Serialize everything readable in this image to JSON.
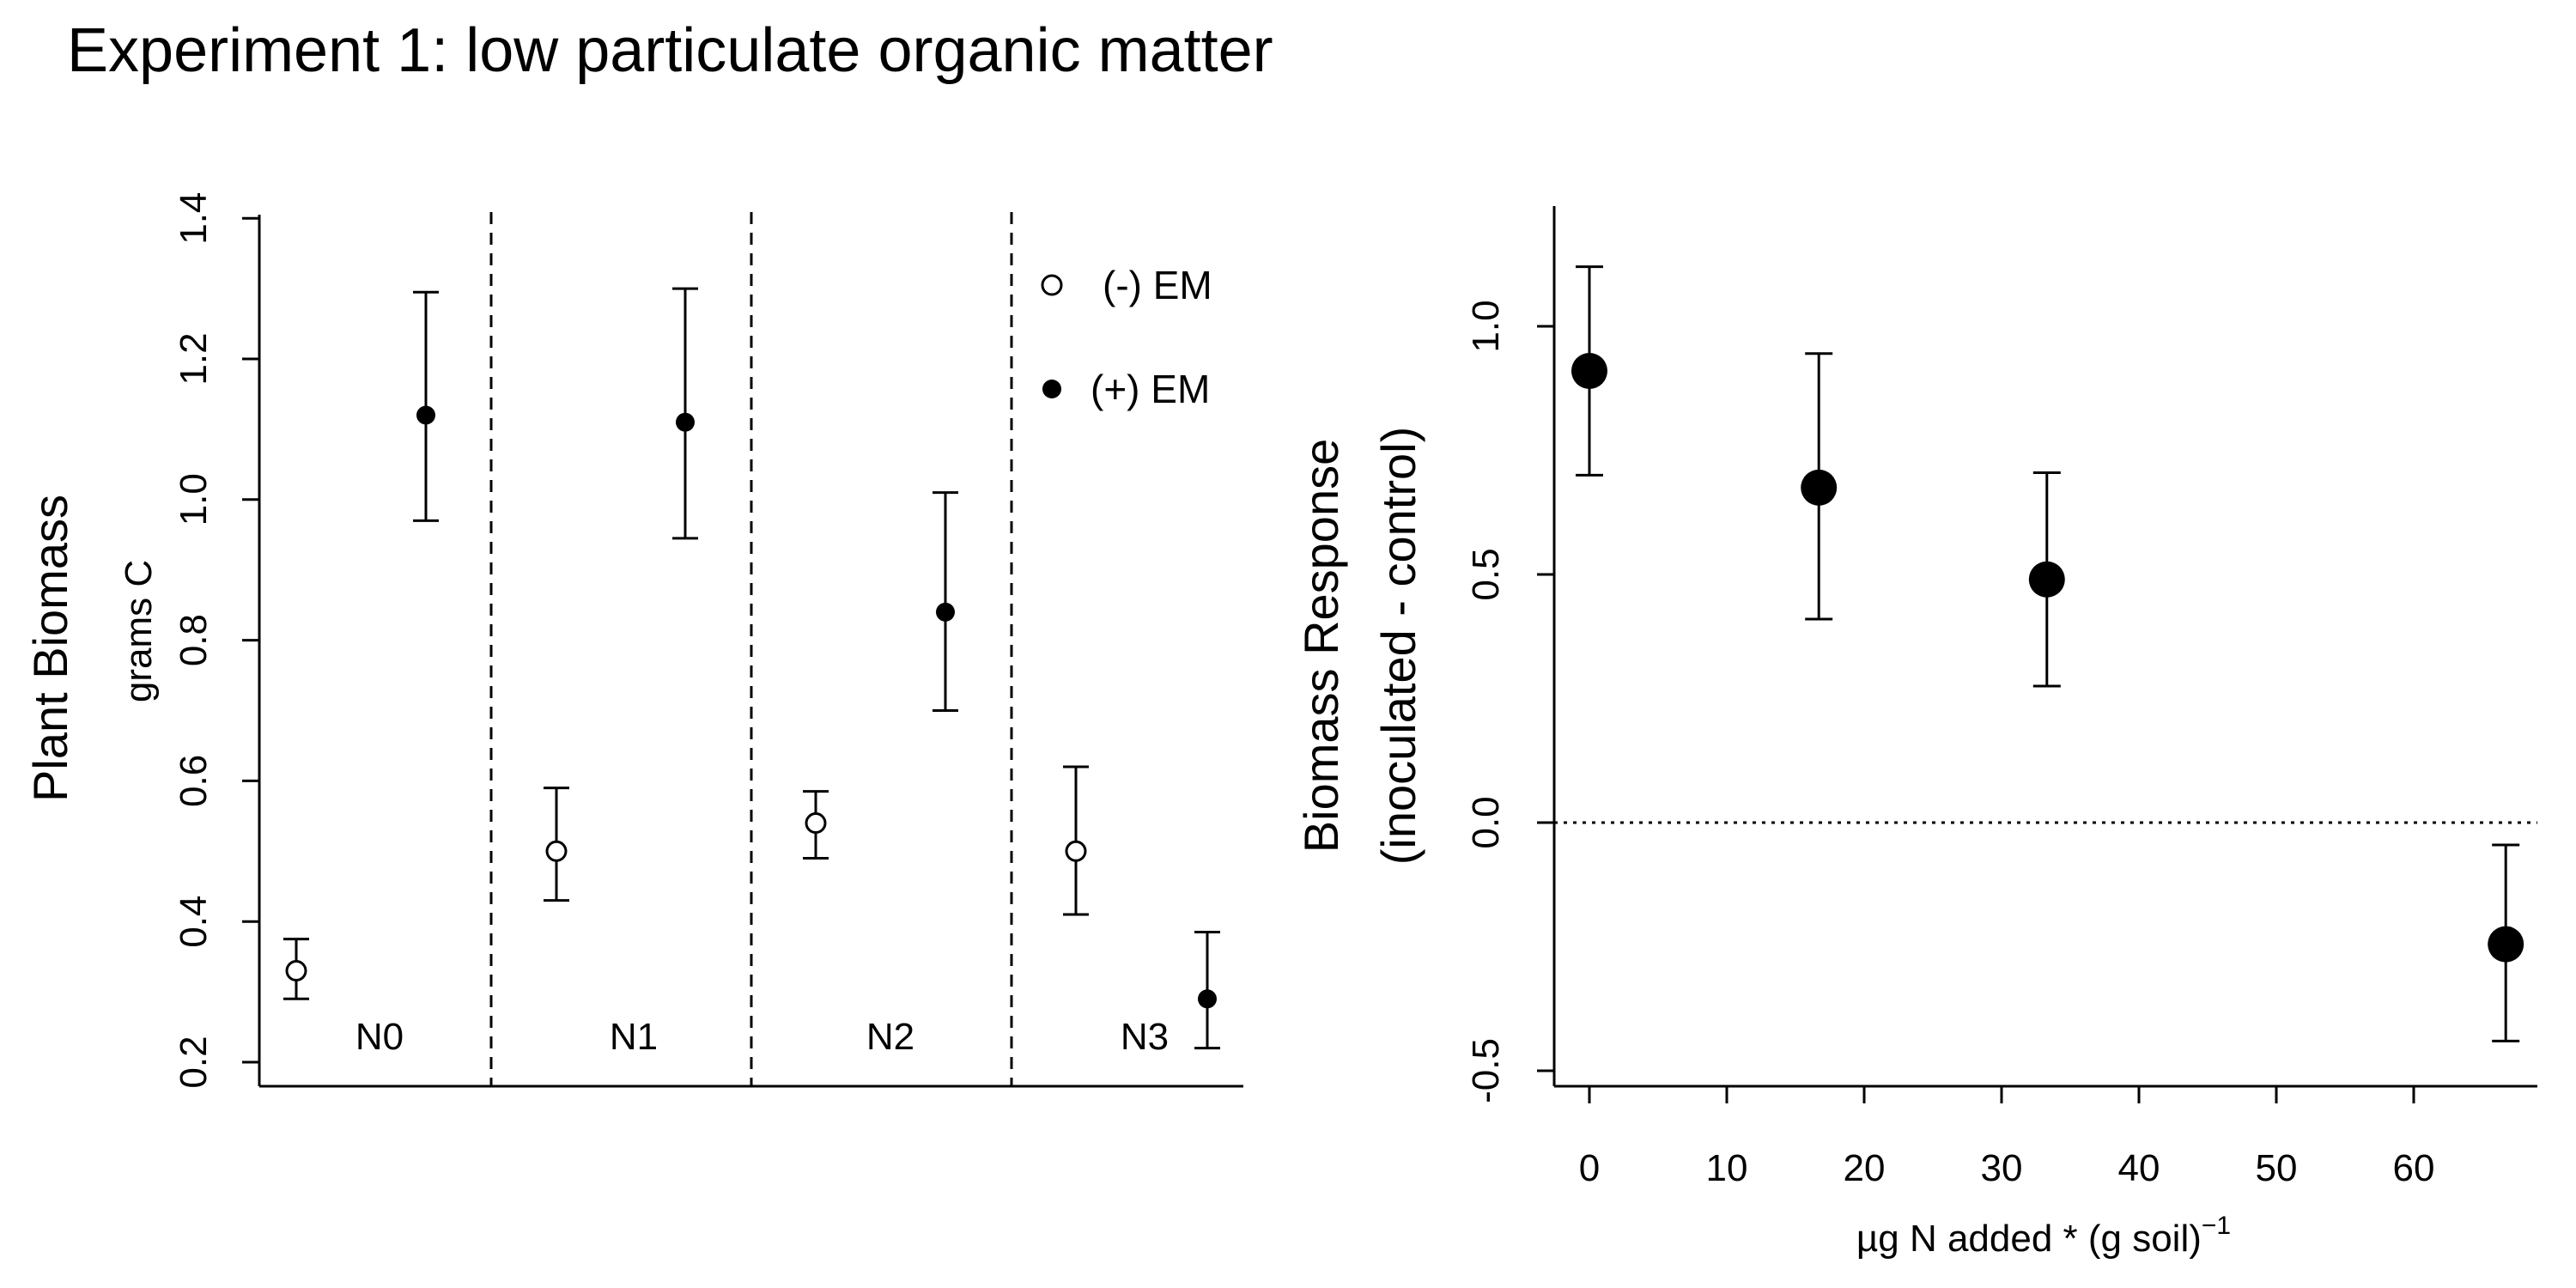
{
  "title": "Experiment 1: low particulate organic matter",
  "chart_data": [
    {
      "type": "scatter",
      "ylabel": "Plant Biomass",
      "ylabel_units": "grams C",
      "ylim": [
        0.2,
        1.4
      ],
      "yticks": [
        0.2,
        0.4,
        0.6,
        0.8,
        1.0,
        1.2,
        1.4
      ],
      "ytick_labels": [
        "0.2",
        "0.4",
        "0.6",
        "0.8",
        "1.0",
        "1.2",
        "1.4"
      ],
      "groups": [
        "N0",
        "N1",
        "N2",
        "N3"
      ],
      "legend_position": "top-right",
      "series": [
        {
          "name": "(-) EM",
          "marker": "open-circle",
          "values": [
            0.33,
            0.5,
            0.54,
            0.5
          ],
          "lower": [
            0.29,
            0.43,
            0.49,
            0.41
          ],
          "upper": [
            0.375,
            0.59,
            0.585,
            0.62
          ]
        },
        {
          "name": "(+) EM",
          "marker": "filled-circle",
          "values": [
            1.12,
            1.11,
            0.84,
            0.29
          ],
          "lower": [
            0.97,
            0.945,
            0.7,
            0.22
          ],
          "upper": [
            1.295,
            1.3,
            1.01,
            0.385
          ]
        }
      ]
    },
    {
      "type": "scatter",
      "xlabel": "µg N added * (g soil)",
      "xlabel_superscript": "−1",
      "ylabel": "Biomass Response",
      "ylabel_line2": "(inoculated - control)",
      "xlim": [
        -3,
        69
      ],
      "ylim": [
        -0.55,
        1.25
      ],
      "xticks": [
        0,
        10,
        20,
        30,
        40,
        50,
        60
      ],
      "xtick_labels": [
        "0",
        "10",
        "20",
        "30",
        "40",
        "50",
        "60"
      ],
      "yticks": [
        -0.5,
        0.0,
        0.5,
        1.0
      ],
      "ytick_labels": [
        "-0.5",
        "0.0",
        "0.5",
        "1.0"
      ],
      "reference_line_y": 0,
      "series": [
        {
          "marker": "filled-circle-large",
          "x": [
            0,
            16.7,
            33.3,
            66.7
          ],
          "y": [
            0.91,
            0.675,
            0.49,
            -0.245
          ],
          "lower": [
            0.7,
            0.41,
            0.275,
            -0.44
          ],
          "upper": [
            1.12,
            0.945,
            0.705,
            -0.045
          ]
        }
      ]
    }
  ]
}
